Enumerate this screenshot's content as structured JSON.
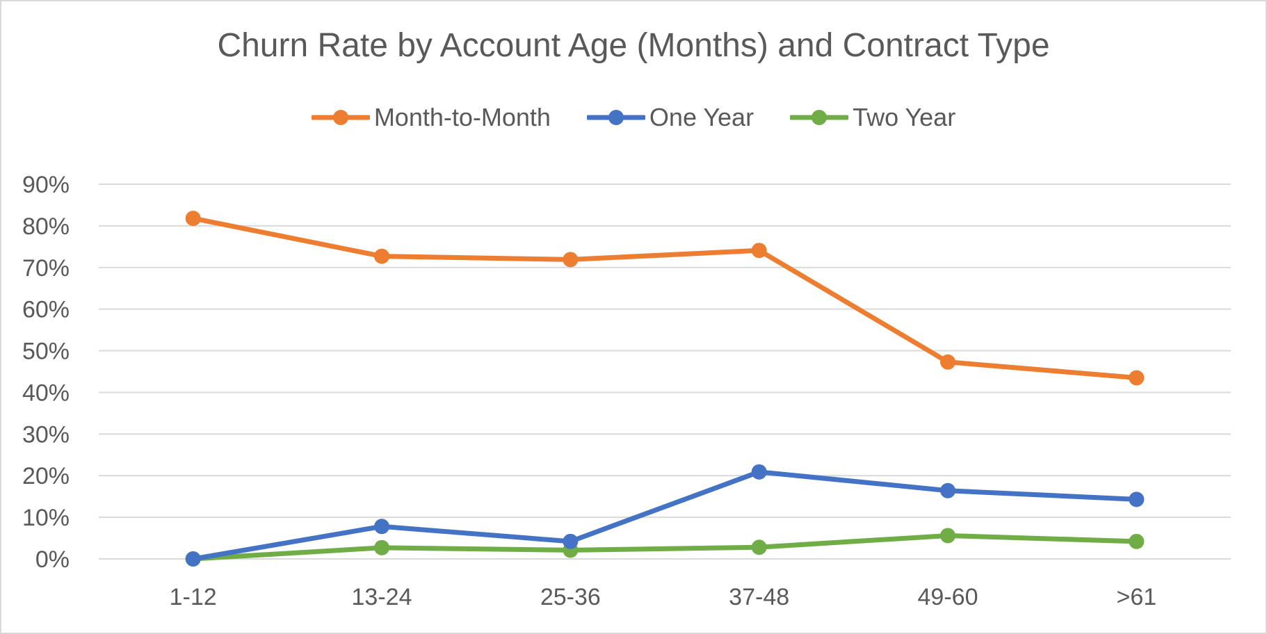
{
  "chart_data": {
    "type": "line",
    "title": "Churn Rate by Account Age (Months) and Contract Type",
    "xlabel": "",
    "ylabel": "",
    "categories": [
      "1-12",
      "13-24",
      "25-36",
      "37-48",
      "49-60",
      ">61"
    ],
    "ylim": [
      0,
      0.9
    ],
    "y_ticks": [
      0,
      0.1,
      0.2,
      0.3,
      0.4,
      0.5,
      0.6,
      0.7,
      0.8,
      0.9
    ],
    "y_tick_labels": [
      "0%",
      "10%",
      "20%",
      "30%",
      "40%",
      "50%",
      "60%",
      "70%",
      "80%",
      "90%"
    ],
    "grid": true,
    "legend_position": "top",
    "series": [
      {
        "name": "Month-to-Month",
        "color": "#ED7D31",
        "values": [
          0.818,
          0.727,
          0.719,
          0.741,
          0.473,
          0.435
        ]
      },
      {
        "name": "One Year",
        "color": "#4472C4",
        "values": [
          0.0,
          0.078,
          0.042,
          0.209,
          0.164,
          0.143
        ]
      },
      {
        "name": "Two Year",
        "color": "#70AD47",
        "values": [
          0.0,
          0.027,
          0.021,
          0.028,
          0.056,
          0.042
        ]
      }
    ]
  }
}
